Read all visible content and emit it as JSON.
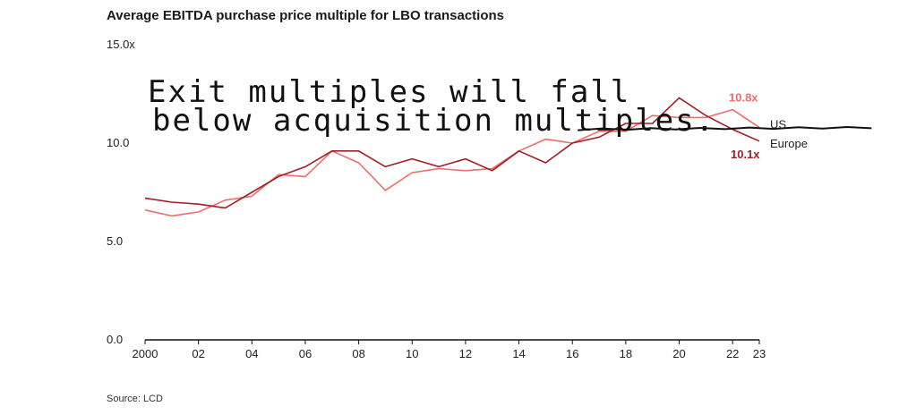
{
  "chart_data": {
    "type": "line",
    "title": "Average EBITDA purchase price multiple for LBO transactions",
    "source": "Source: LCD",
    "ylim": [
      0,
      15
    ],
    "yticks": [
      0,
      5,
      10,
      15
    ],
    "ytick_labels": [
      "0.0",
      "5.0",
      "10.0",
      "15.0x"
    ],
    "x": [
      2000,
      2001,
      2002,
      2003,
      2004,
      2005,
      2006,
      2007,
      2008,
      2009,
      2010,
      2011,
      2012,
      2013,
      2014,
      2015,
      2016,
      2017,
      2018,
      2019,
      2020,
      2021,
      2022,
      2023
    ],
    "xticks": [
      2000,
      2002,
      2004,
      2006,
      2008,
      2010,
      2012,
      2014,
      2016,
      2018,
      2020,
      2022,
      2023
    ],
    "xtick_labels": [
      "2000",
      "02",
      "04",
      "06",
      "08",
      "10",
      "12",
      "14",
      "16",
      "18",
      "20",
      "22",
      "23"
    ],
    "series": [
      {
        "name": "US",
        "color": "#f26b6b",
        "end_label": "10.8x",
        "values": [
          6.6,
          6.3,
          6.5,
          7.1,
          7.3,
          8.4,
          8.3,
          9.6,
          9.0,
          7.6,
          8.5,
          8.7,
          8.6,
          8.7,
          9.6,
          10.2,
          10.0,
          10.6,
          10.6,
          11.4,
          11.3,
          11.3,
          11.7,
          10.8
        ]
      },
      {
        "name": "Europe",
        "color": "#a31d24",
        "end_label": "10.1x",
        "values": [
          7.2,
          7.0,
          6.9,
          6.7,
          7.5,
          8.3,
          8.8,
          9.6,
          9.6,
          8.8,
          9.2,
          8.8,
          9.2,
          8.6,
          9.6,
          9.0,
          10.0,
          10.3,
          11.0,
          11.0,
          12.3,
          11.4,
          10.7,
          10.1
        ]
      }
    ],
    "annotation": {
      "line1": "Exit multiples will fall",
      "line2": "below acquisition multiples.",
      "hand_line_value": 10.7,
      "hand_line_from": 2016.2,
      "hand_line_to": 2027.2
    }
  }
}
